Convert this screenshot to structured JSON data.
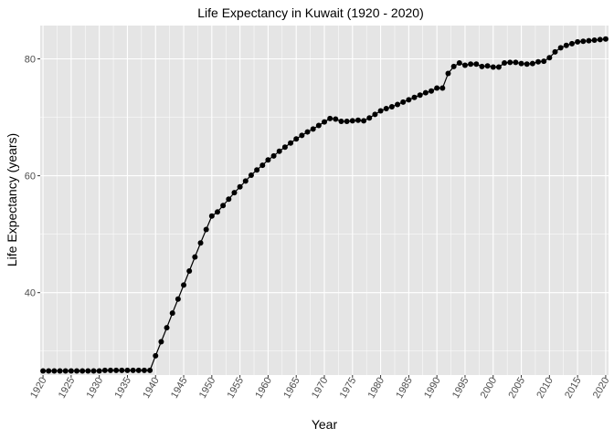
{
  "chart_data": {
    "type": "line",
    "title": "Life Expectancy in Kuwait (1920 - 2020)",
    "xlabel": "Year",
    "ylabel": "Life Expectancy (years)",
    "xlim": [
      1919.5,
      2020.5
    ],
    "ylim": [
      25.9,
      85.7
    ],
    "x_ticks": [
      1920,
      1925,
      1930,
      1935,
      1940,
      1945,
      1950,
      1955,
      1960,
      1965,
      1970,
      1975,
      1980,
      1985,
      1990,
      1995,
      2000,
      2005,
      2010,
      2015,
      2020
    ],
    "y_ticks": [
      40,
      60,
      80
    ],
    "grid": true,
    "background": "#e5e5e5",
    "grid_major_color": "#ffffff",
    "line_color": "#000000",
    "point_color": "#000000",
    "series": [
      {
        "x": [
          1920,
          1921,
          1922,
          1923,
          1924,
          1925,
          1926,
          1927,
          1928,
          1929,
          1930,
          1931,
          1932,
          1933,
          1934,
          1935,
          1936,
          1937,
          1938,
          1939,
          1940,
          1941,
          1942,
          1943,
          1944,
          1945,
          1946,
          1947,
          1948,
          1949,
          1950,
          1951,
          1952,
          1953,
          1954,
          1955,
          1956,
          1957,
          1958,
          1959,
          1960,
          1961,
          1962,
          1963,
          1964,
          1965,
          1966,
          1967,
          1968,
          1969,
          1970,
          1971,
          1972,
          1973,
          1974,
          1975,
          1976,
          1977,
          1978,
          1979,
          1980,
          1981,
          1982,
          1983,
          1984,
          1985,
          1986,
          1987,
          1988,
          1989,
          1990,
          1991,
          1992,
          1993,
          1994,
          1995,
          1996,
          1997,
          1998,
          1999,
          2000,
          2001,
          2002,
          2003,
          2004,
          2005,
          2006,
          2007,
          2008,
          2009,
          2010,
          2011,
          2012,
          2013,
          2014,
          2015,
          2016,
          2017,
          2018,
          2019,
          2020
        ],
        "values": [
          26.6,
          26.6,
          26.6,
          26.6,
          26.6,
          26.6,
          26.6,
          26.6,
          26.6,
          26.6,
          26.6,
          26.7,
          26.7,
          26.7,
          26.7,
          26.7,
          26.7,
          26.7,
          26.7,
          26.7,
          29.2,
          31.6,
          34.0,
          36.5,
          38.9,
          41.3,
          43.7,
          46.1,
          48.5,
          50.8,
          53.1,
          53.8,
          54.9,
          56.0,
          57.1,
          58.1,
          59.1,
          60.1,
          61.0,
          61.8,
          62.7,
          63.4,
          64.2,
          64.9,
          65.6,
          66.3,
          66.9,
          67.5,
          68.0,
          68.6,
          69.2,
          69.8,
          69.7,
          69.3,
          69.3,
          69.4,
          69.5,
          69.4,
          69.9,
          70.5,
          71.1,
          71.5,
          71.8,
          72.2,
          72.6,
          73.0,
          73.4,
          73.8,
          74.2,
          74.5,
          75.0,
          75.0,
          77.5,
          78.7,
          79.3,
          78.9,
          79.1,
          79.1,
          78.7,
          78.8,
          78.6,
          78.6,
          79.3,
          79.4,
          79.4,
          79.2,
          79.1,
          79.2,
          79.5,
          79.6,
          80.2,
          81.2,
          81.9,
          82.3,
          82.6,
          82.9,
          83.0,
          83.1,
          83.2,
          83.3,
          83.4
        ]
      }
    ]
  }
}
